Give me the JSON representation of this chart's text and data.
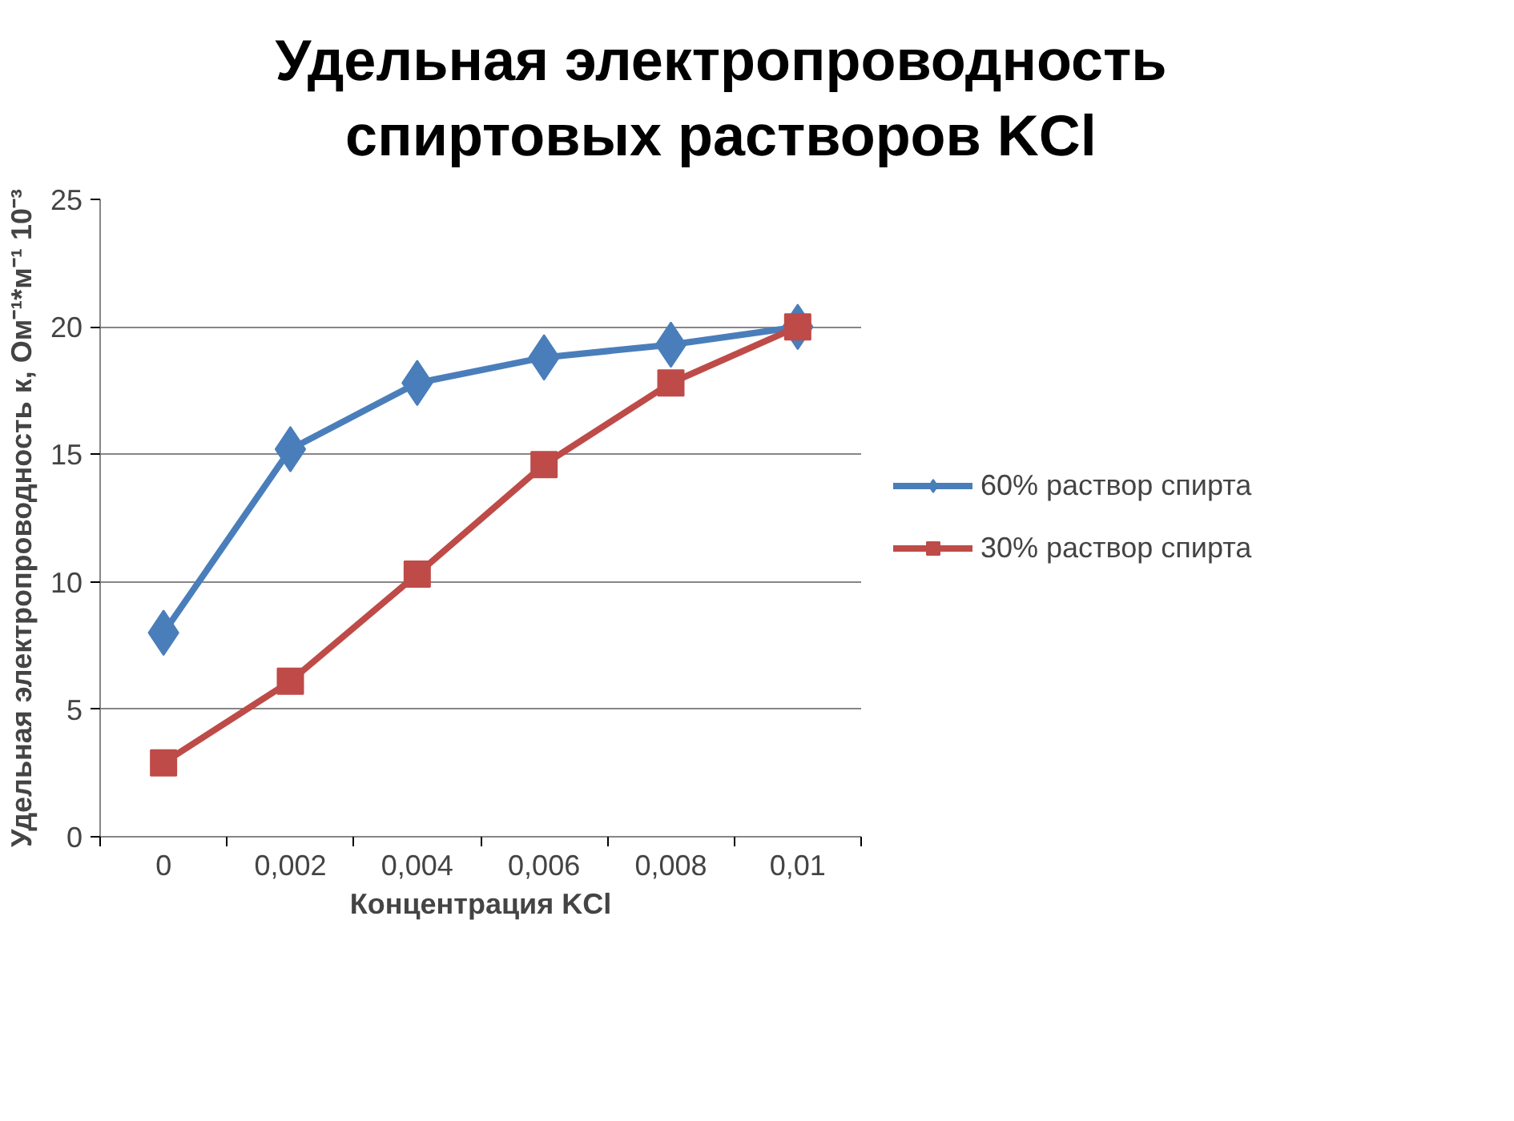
{
  "chart_data": {
    "type": "line",
    "title": "Удельная электропроводность\nспиртовых растворов KCl",
    "xlabel": "Концентрация KCl",
    "ylabel": "Удельная электропроводность к, Ом⁻¹*м⁻¹ 10⁻³",
    "categories": [
      "0",
      "0,002",
      "0,004",
      "0,006",
      "0,008",
      "0,01"
    ],
    "series": [
      {
        "name": "60% раствор спирта",
        "color": "#4a7ebb",
        "marker": "diamond",
        "values": [
          8.0,
          15.2,
          17.8,
          18.8,
          19.3,
          20.0
        ]
      },
      {
        "name": "30% раствор спирта",
        "color": "#be4b48",
        "marker": "square",
        "values": [
          2.9,
          6.1,
          10.3,
          14.6,
          17.8,
          20.0
        ]
      }
    ],
    "ylim": [
      0,
      25
    ],
    "yticks": [
      0,
      5,
      10,
      15,
      20,
      25
    ],
    "grid": "y",
    "legend": "right",
    "line_style": "solid"
  }
}
